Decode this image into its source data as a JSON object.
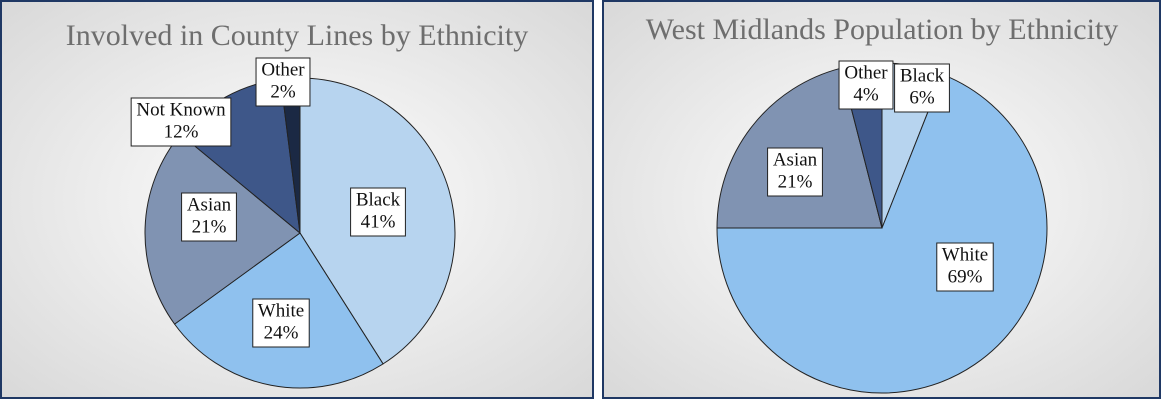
{
  "chart_data": [
    {
      "type": "pie",
      "title": "Involved in County Lines by Ethnicity",
      "categories": [
        "Black",
        "White",
        "Asian",
        "Not Known",
        "Other"
      ],
      "values": [
        41,
        24,
        21,
        12,
        2
      ],
      "value_labels": [
        "41%",
        "24%",
        "21%",
        "12%",
        "2%"
      ],
      "colors": [
        "#b7d4ef",
        "#8fc1ee",
        "#8093b2",
        "#3e5789",
        "#1b2944"
      ]
    },
    {
      "type": "pie",
      "title": "West Midlands Population by Ethnicity",
      "categories": [
        "Black",
        "White",
        "Asian",
        "Other"
      ],
      "values": [
        6,
        69,
        21,
        4
      ],
      "value_labels": [
        "6%",
        "69%",
        "21%",
        "4%"
      ],
      "colors": [
        "#b7d4ef",
        "#8fc1ee",
        "#8093b2",
        "#3e5789"
      ]
    }
  ]
}
